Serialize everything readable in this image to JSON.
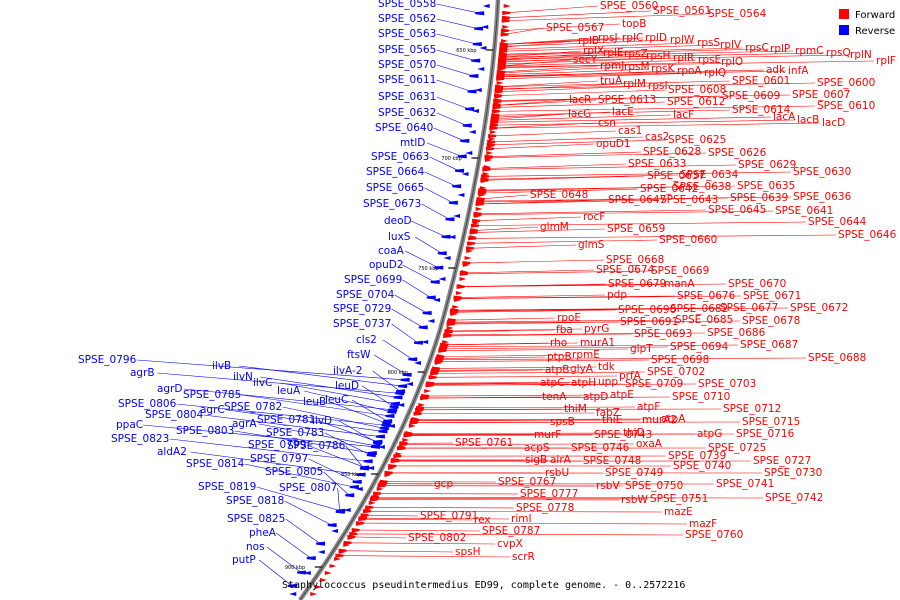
{
  "caption": "Staphylococcus pseudintermedius ED99, complete genome. - 0..2572216",
  "legend": [
    {
      "label": "Forward",
      "color": "#ff0000"
    },
    {
      "label": "Reverse",
      "color": "#0000ff"
    }
  ],
  "ticks": [
    "650 kbp",
    "700 kbp",
    "750 kbp",
    "800 kbp",
    "850 kbp",
    "900 kbp"
  ],
  "forward_genes": [
    "SPSE_0560",
    "SPSE_0561",
    "SPSE_0564",
    "topB",
    "SPSE_0567",
    "rplB",
    "rpsJ",
    "rplC",
    "rplD",
    "rplW",
    "rpsS",
    "rplV",
    "rpsC",
    "rplP",
    "rpmC",
    "rpsQ",
    "rplN",
    "rplX",
    "rplE",
    "rpsZ",
    "rpsH",
    "rplR",
    "rpsE",
    "rplO",
    "rplF",
    "secY",
    "rpmJ",
    "rpsM",
    "rpsK",
    "rpoA",
    "rplQ",
    "adk",
    "infA",
    "truA",
    "rplM",
    "rpsI",
    "SPSE_0601",
    "SPSE_0600",
    "SPSE_0608",
    "SPSE_0607",
    "lacR",
    "SPSE_0613",
    "SPSE_0612",
    "SPSE_0609",
    "SPSE_0610",
    "lacG",
    "lacE",
    "lacF",
    "SPSE_0614",
    "lacA",
    "lacB",
    "lacD",
    "csn",
    "cas1",
    "cas2",
    "SPSE_0625",
    "opuD1",
    "SPSE_0628",
    "SPSE_0626",
    "SPSE_0633",
    "SPSE_0629",
    "SPSE_0630",
    "SPSE_0637",
    "SPSE_0634",
    "SPSE_0642",
    "SPSE_0638",
    "SPSE_0635",
    "SPSE_0648",
    "SPSE_0647",
    "SPSE_0643",
    "SPSE_0639",
    "SPSE_0636",
    "SPSE_0645",
    "SPSE_0641",
    "SPSE_0644",
    "SPSE_0646",
    "rocF",
    "glmM",
    "SPSE_0659",
    "SPSE_0660",
    "glmS",
    "SPSE_0668",
    "SPSE_0674",
    "SPSE_0669",
    "SPSE_0679",
    "manA",
    "SPSE_0670",
    "pdp",
    "SPSE_0676",
    "SPSE_0671",
    "SPSE_0690",
    "SPSE_0682",
    "SPSE_0677",
    "SPSE_0672",
    "rpoE",
    "SPSE_0691",
    "SPSE_0685",
    "SPSE_0678",
    "fba",
    "pyrG",
    "SPSE_0693",
    "SPSE_0686",
    "rho",
    "murA1",
    "glpT",
    "SPSE_0694",
    "SPSE_0687",
    "SPSE_0688",
    "ptpB",
    "rpmE",
    "SPSE_0698",
    "tdk",
    "atpB",
    "glyA",
    "SPSE_0702",
    "prfA",
    "atpC",
    "atpH",
    "upp",
    "SPSE_0709",
    "SPSE_0703",
    "tenA",
    "atpD",
    "atpE",
    "SPSE_0710",
    "atpF",
    "SPSE_0712",
    "thiM",
    "fabZ",
    "thiE",
    "murA2",
    "atpA",
    "SPSE_0715",
    "spsB",
    "SPSE_0743",
    "thiD",
    "atpG",
    "SPSE_0716",
    "SPSE_0761",
    "murF",
    "oxaA",
    "acpS",
    "SPSE_0746",
    "SPSE_0725",
    "sigB",
    "alrA",
    "SPSE_0748",
    "SPSE_0739",
    "SPSE_0727",
    "rsbU",
    "SPSE_0749",
    "SPSE_0740",
    "SPSE_0730",
    "gcp",
    "SPSE_0767",
    "rsbV",
    "SPSE_0750",
    "SPSE_0741",
    "SPSE_0777",
    "rsbW",
    "SPSE_0751",
    "SPSE_0742",
    "SPSE_0778",
    "mazE",
    "SPSE_0791",
    "rex",
    "rimI",
    "mazF",
    "SPSE_0787",
    "SPSE_0802",
    "cvpX",
    "SPSE_0760",
    "spsH",
    "scrR"
  ],
  "reverse_genes": [
    "SPSE_0558",
    "SPSE_0562",
    "SPSE_0563",
    "SPSE_0565",
    "SPSE_0570",
    "SPSE_0611",
    "SPSE_0631",
    "SPSE_0632",
    "SPSE_0640",
    "mtlD",
    "SPSE_0663",
    "SPSE_0664",
    "SPSE_0665",
    "SPSE_0673",
    "deoD",
    "luxS",
    "coaA",
    "opuD2",
    "SPSE_0699",
    "SPSE_0704",
    "SPSE_0729",
    "SPSE_0737",
    "cls2",
    "ftsW",
    "ilvA-2",
    "leuD",
    "leuC",
    "ilvB",
    "ilvN",
    "ilvC",
    "leuA",
    "leuB",
    "SPSE_0796",
    "agrB",
    "agrD",
    "SPSE_0785",
    "SPSE_0806",
    "agrC",
    "SPSE_0782",
    "SPSE_0804",
    "SPSE_0781",
    "ilvD",
    "agrA",
    "ppaC",
    "SPSE_0803",
    "SPSE_0783",
    "SPSE_0823",
    "SPSE_0799",
    "SPSE_0786",
    "aldA2",
    "SPSE_0797",
    "SPSE_0814",
    "SPSE_0805",
    "SPSE_0819",
    "SPSE_0807",
    "SPSE_0818",
    "SPSE_0825",
    "pheA",
    "nos",
    "putP"
  ]
}
